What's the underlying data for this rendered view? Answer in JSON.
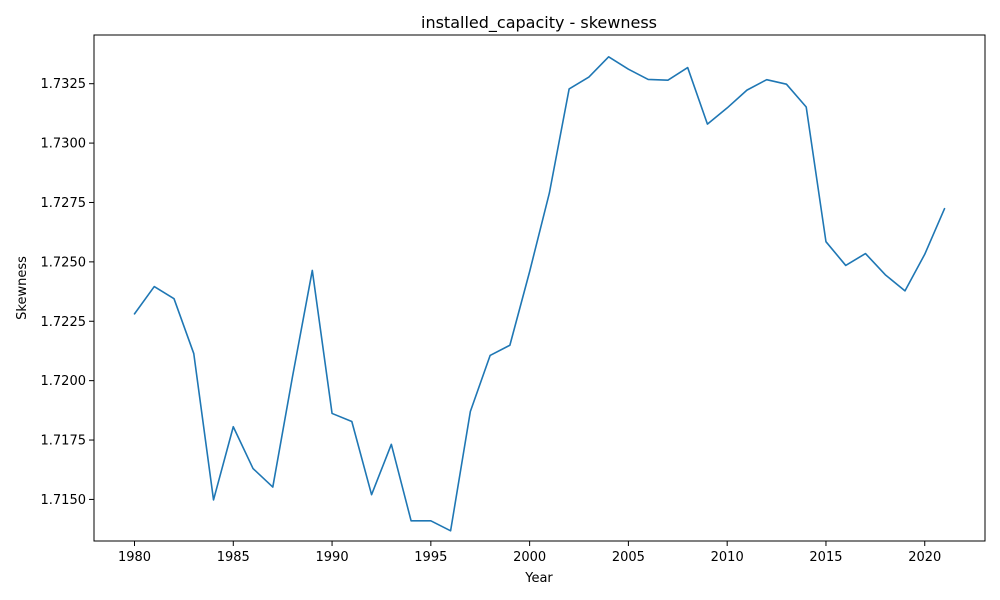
{
  "chart_data": {
    "type": "line",
    "title": "installed_capacity - skewness",
    "xlabel": "Year",
    "ylabel": "Skewness",
    "xlim": [
      1977.95,
      2023.05
    ],
    "ylim": [
      1.71325,
      1.73455
    ],
    "xticks": [
      1980,
      1985,
      1990,
      1995,
      2000,
      2005,
      2010,
      2015,
      2020
    ],
    "yticks": [
      1.715,
      1.7175,
      1.72,
      1.7225,
      1.725,
      1.7275,
      1.73,
      1.7325
    ],
    "ytick_labels": [
      "1.7150",
      "1.7175",
      "1.7200",
      "1.7225",
      "1.7250",
      "1.7275",
      "1.7300",
      "1.7325"
    ],
    "grid": false,
    "line_color": "#1f77b4",
    "x": [
      1980,
      1981,
      1982,
      1983,
      1984,
      1985,
      1986,
      1987,
      1988,
      1989,
      1990,
      1991,
      1992,
      1993,
      1994,
      1995,
      1996,
      1997,
      1998,
      1999,
      2000,
      2001,
      2002,
      2003,
      2004,
      2005,
      2006,
      2007,
      2008,
      2009,
      2010,
      2011,
      2012,
      2013,
      2014,
      2015,
      2016,
      2017,
      2018,
      2019,
      2020,
      2021
    ],
    "series": [
      {
        "values": [
          1.72281,
          1.72396,
          1.72345,
          1.72114,
          1.71498,
          1.71806,
          1.7163,
          1.71552,
          1.72018,
          1.72464,
          1.71862,
          1.71828,
          1.7152,
          1.71732,
          1.7141,
          1.7141,
          1.71368,
          1.7187,
          1.72106,
          1.72149,
          1.72459,
          1.7279,
          1.73228,
          1.73278,
          1.73363,
          1.73311,
          1.73268,
          1.73265,
          1.73318,
          1.7308,
          1.73148,
          1.73223,
          1.73267,
          1.73248,
          1.73152,
          1.72585,
          1.72485,
          1.72535,
          1.72446,
          1.72378,
          1.72532,
          1.72724
        ]
      }
    ]
  }
}
